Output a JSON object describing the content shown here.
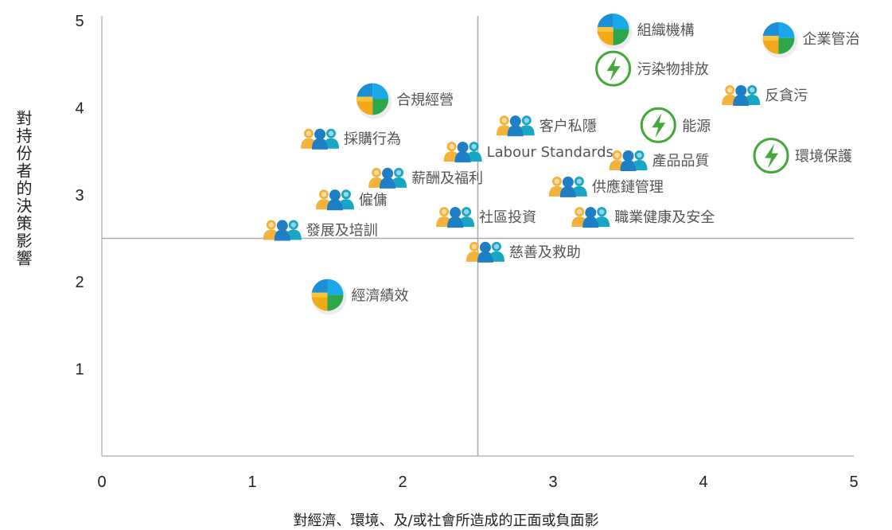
{
  "chart_data": {
    "type": "scatter",
    "xlabel": "對經濟、環境、及/或社會所造成的正面或負面影",
    "ylabel": "對持份者的決策影響",
    "xlim": [
      0,
      5
    ],
    "ylim": [
      0,
      5
    ],
    "xticks": [
      "0",
      "1",
      "2",
      "3",
      "4",
      "5"
    ],
    "yticks": [
      "1",
      "2",
      "3",
      "4",
      "5"
    ],
    "quadrant_lines": {
      "x": 2.5,
      "y": 2.5
    },
    "grid": false,
    "icon_types": {
      "governance": "pie-chart-icon",
      "environment": "lightning-icon",
      "social": "people-group-icon"
    },
    "points": [
      {
        "label": "組織機構",
        "x": 3.4,
        "y": 4.9,
        "icon": "governance"
      },
      {
        "label": "企業管治",
        "x": 4.5,
        "y": 4.8,
        "icon": "governance"
      },
      {
        "label": "污染物排放",
        "x": 3.4,
        "y": 4.45,
        "icon": "environment"
      },
      {
        "label": "反貪污",
        "x": 4.25,
        "y": 4.15,
        "icon": "social"
      },
      {
        "label": "合規經營",
        "x": 1.8,
        "y": 4.1,
        "icon": "governance"
      },
      {
        "label": "客户私隱",
        "x": 2.75,
        "y": 3.8,
        "icon": "social"
      },
      {
        "label": "能源",
        "x": 3.7,
        "y": 3.8,
        "icon": "environment"
      },
      {
        "label": "採購行為",
        "x": 1.45,
        "y": 3.65,
        "icon": "social"
      },
      {
        "label": "Labour Standards",
        "x": 2.4,
        "y": 3.5,
        "icon": "social"
      },
      {
        "label": "產品品質",
        "x": 3.5,
        "y": 3.4,
        "icon": "social"
      },
      {
        "label": "環境保護",
        "x": 4.45,
        "y": 3.45,
        "icon": "environment"
      },
      {
        "label": "薪酬及福利",
        "x": 1.9,
        "y": 3.2,
        "icon": "social"
      },
      {
        "label": "供應鏈管理",
        "x": 3.1,
        "y": 3.1,
        "icon": "social"
      },
      {
        "label": "僱傭",
        "x": 1.55,
        "y": 2.95,
        "icon": "social"
      },
      {
        "label": "社區投資",
        "x": 2.35,
        "y": 2.75,
        "icon": "social"
      },
      {
        "label": "職業健康及安全",
        "x": 3.25,
        "y": 2.75,
        "icon": "social"
      },
      {
        "label": "發展及培訓",
        "x": 1.2,
        "y": 2.6,
        "icon": "social"
      },
      {
        "label": "慈善及救助",
        "x": 2.55,
        "y": 2.35,
        "icon": "social"
      },
      {
        "label": "經濟績效",
        "x": 1.5,
        "y": 1.85,
        "icon": "governance"
      }
    ]
  }
}
